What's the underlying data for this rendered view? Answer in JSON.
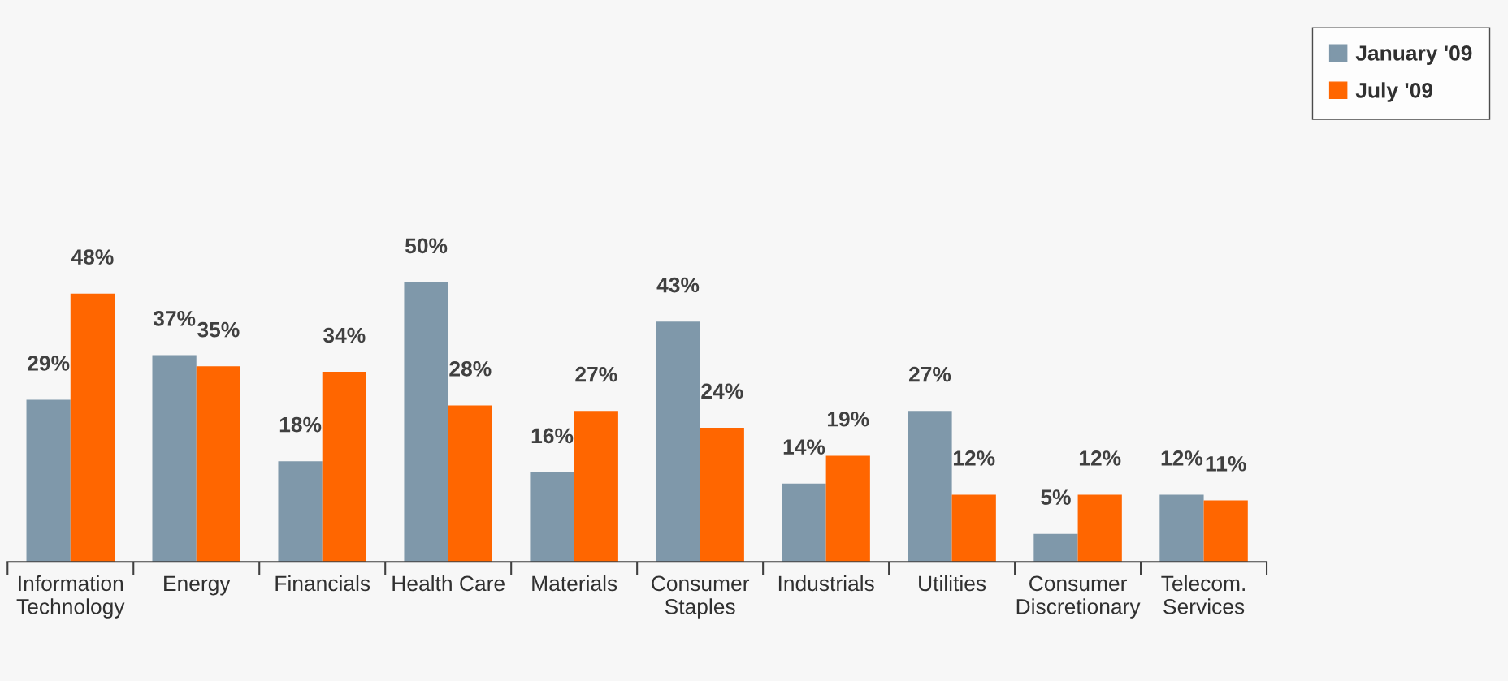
{
  "chart_data": {
    "type": "bar",
    "categories": [
      "Information\nTechnology",
      "Energy",
      "Financials",
      "Health Care",
      "Materials",
      "Consumer\nStaples",
      "Industrials",
      "Utilities",
      "Consumer\nDiscretionary",
      "Telecom.\nServices"
    ],
    "series": [
      {
        "name": "January '09",
        "color": "#7f98aa",
        "values": [
          29,
          37,
          18,
          50,
          16,
          43,
          14,
          27,
          5,
          12
        ],
        "value_labels": [
          "29%",
          "37%",
          "18%",
          "50%",
          "16%",
          "43%",
          "14%",
          "27%",
          "5%",
          "12%"
        ]
      },
      {
        "name": "July '09",
        "color": "#ff6600",
        "values": [
          48,
          35,
          34,
          28,
          27,
          24,
          19,
          12,
          12,
          11
        ],
        "value_labels": [
          "48%",
          "35%",
          "34%",
          "28%",
          "27%",
          "24%",
          "19%",
          "12%",
          "12%",
          "11%"
        ]
      }
    ],
    "legend": "top right",
    "grid": false
  }
}
